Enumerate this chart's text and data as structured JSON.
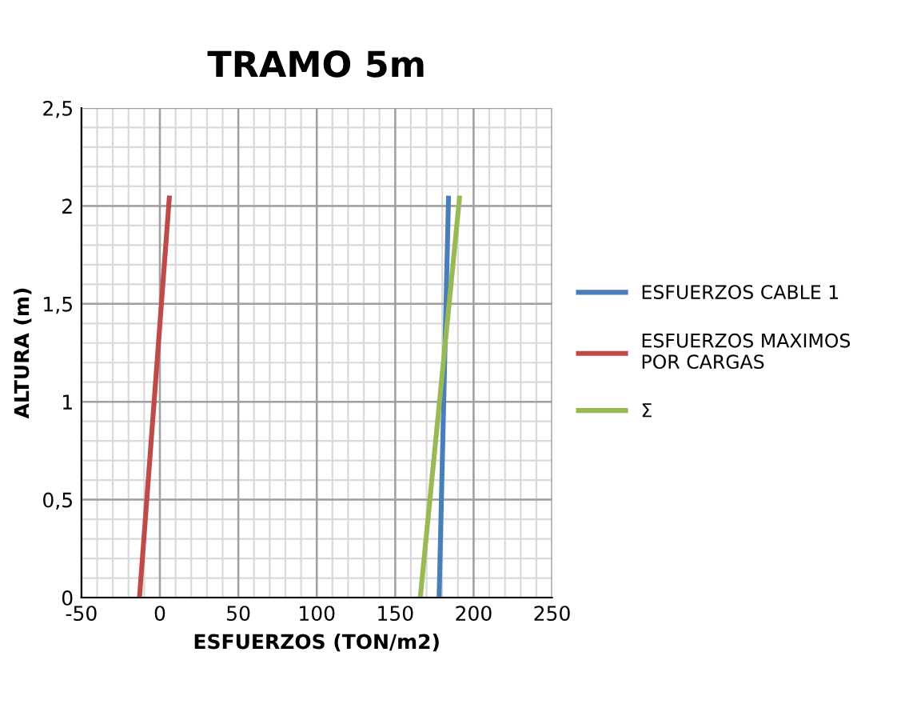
{
  "chart_data": {
    "type": "line",
    "title": "TRAMO 5m",
    "xlabel": "ESFUERZOS (TON/m2)",
    "ylabel": "ALTURA (m)",
    "xlim": [
      -50,
      250
    ],
    "xticks": [
      -50,
      0,
      50,
      100,
      150,
      200,
      250
    ],
    "ylim": [
      0,
      2.5
    ],
    "yticks": [
      {
        "value": 0,
        "label": "0"
      },
      {
        "value": 0.5,
        "label": "0,5"
      },
      {
        "value": 1,
        "label": "1"
      },
      {
        "value": 1.5,
        "label": "1,5"
      },
      {
        "value": 2,
        "label": "2"
      },
      {
        "value": 2.5,
        "label": "2,5"
      }
    ],
    "grid": true,
    "legend": "right",
    "marker": "none",
    "line_style": "solid",
    "series": [
      {
        "name": "ESFUERZOS CABLE 1",
        "color": "#4a7ebb",
        "x": [
          178,
          184
        ],
        "values": [
          0,
          2.04
        ]
      },
      {
        "name": "ESFUERZOS MAXIMOS\nPOR CARGAS",
        "color": "#be4b48",
        "x": [
          -13,
          6
        ],
        "values": [
          0,
          2.04
        ]
      },
      {
        "name": "Σ",
        "color": "#98b954",
        "x": [
          166,
          191
        ],
        "values": [
          0,
          2.04
        ]
      }
    ]
  }
}
